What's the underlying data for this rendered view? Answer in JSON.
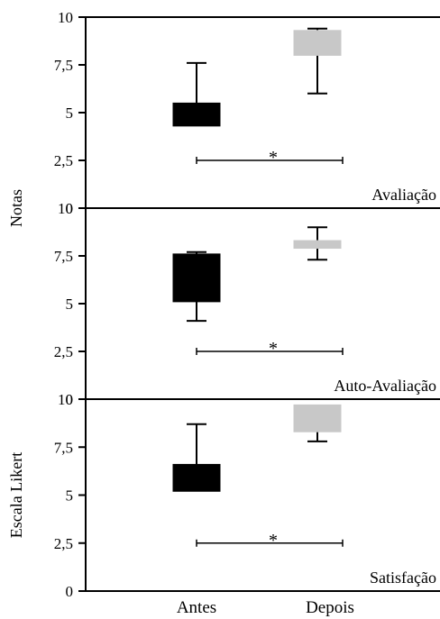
{
  "chart_data": {
    "type": "box",
    "categories": [
      "Antes",
      "Depois"
    ],
    "y_ticks": [
      "0",
      "2,5",
      "5",
      "7,5",
      "10"
    ],
    "y_tick_values": [
      0,
      2.5,
      5,
      7.5,
      10
    ],
    "ylim": [
      0,
      10
    ],
    "colors": {
      "Antes": "#000000",
      "Depois": "#c8c8c8"
    },
    "ylabels": [
      {
        "text": "Notas",
        "panels": [
          0,
          1
        ]
      },
      {
        "text": "Escala Likert",
        "panels": [
          2
        ]
      }
    ],
    "panels": [
      {
        "label": "Avaliação",
        "significance": "*",
        "boxes": [
          {
            "category": "Antes",
            "q1": 4.3,
            "q3": 5.5,
            "whisker_high": 7.6
          },
          {
            "category": "Depois",
            "q1": 8.0,
            "q3": 9.3,
            "whisker_low": 6.0,
            "whisker_high": 9.4
          }
        ]
      },
      {
        "label": "Auto-Avaliação",
        "significance": "*",
        "boxes": [
          {
            "category": "Antes",
            "q1": 5.1,
            "q3": 7.6,
            "whisker_low": 4.1,
            "whisker_high": 7.7
          },
          {
            "category": "Depois",
            "q1": 7.9,
            "q3": 8.3,
            "whisker_low": 7.3,
            "whisker_high": 9.0
          }
        ]
      },
      {
        "label": "Satisfação",
        "significance": "*",
        "boxes": [
          {
            "category": "Antes",
            "q1": 5.2,
            "q3": 6.6,
            "whisker_high": 8.7
          },
          {
            "category": "Depois",
            "q1": 8.3,
            "q3": 9.7,
            "whisker_low": 7.8
          }
        ]
      }
    ]
  }
}
